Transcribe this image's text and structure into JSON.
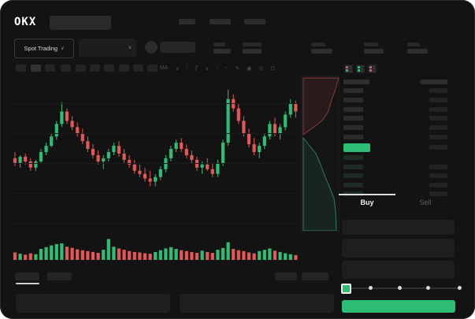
{
  "app": {
    "logo_text": "OKX"
  },
  "colors": {
    "background": "#131313",
    "green": "#2ebd74",
    "red": "#e25757",
    "panel": "#1e1e1e",
    "active_text": "#f0f0f0",
    "dim_text": "#5f5f5f"
  },
  "header": {
    "search": {
      "placeholder": ""
    },
    "nav_placeholder_count": 5,
    "mode_selector": {
      "label": "Spot Trading",
      "chevron": "∨"
    },
    "pair_dropdown": {
      "chevron": "∨"
    },
    "stats_placeholder_count": 5
  },
  "chart_toolbar": {
    "timeframe_button_count": 10,
    "active_timeframe_index": 1,
    "icons": [
      {
        "name": "indicator-ma-icon",
        "glyph": "MA"
      },
      {
        "name": "chevron-down-icon",
        "glyph": "∨"
      },
      {
        "name": "divider",
        "glyph": "|"
      },
      {
        "name": "function-icon",
        "glyph": "ƒ"
      },
      {
        "name": "chevron-down-icon",
        "glyph": "∨"
      },
      {
        "name": "divider",
        "glyph": "|"
      },
      {
        "name": "line-style-icon",
        "glyph": "~"
      },
      {
        "name": "draw-icon",
        "glyph": "✎"
      },
      {
        "name": "camera-icon",
        "glyph": "◉"
      },
      {
        "name": "settings-icon",
        "glyph": "⊙"
      },
      {
        "name": "fullscreen-icon",
        "glyph": "⊡"
      }
    ]
  },
  "chart_data": [
    {
      "type": "candlestick",
      "title": "",
      "xlabel": "",
      "ylabel": "",
      "note": "price scale normalized 0-100, no axis labels visible in screenshot",
      "ylim": [
        0,
        100
      ],
      "candles_ohlc": [
        [
          48,
          52,
          43,
          45
        ],
        [
          45,
          50,
          42,
          49
        ],
        [
          49,
          51,
          44,
          46
        ],
        [
          46,
          48,
          40,
          42
        ],
        [
          42,
          47,
          40,
          46
        ],
        [
          46,
          54,
          45,
          52
        ],
        [
          52,
          58,
          50,
          56
        ],
        [
          56,
          64,
          55,
          62
        ],
        [
          62,
          72,
          60,
          70
        ],
        [
          70,
          84,
          68,
          78
        ],
        [
          78,
          80,
          70,
          72
        ],
        [
          72,
          75,
          66,
          68
        ],
        [
          68,
          71,
          62,
          64
        ],
        [
          64,
          67,
          57,
          59
        ],
        [
          59,
          62,
          52,
          54
        ],
        [
          54,
          57,
          48,
          50
        ],
        [
          50,
          53,
          44,
          46
        ],
        [
          46,
          50,
          41,
          48
        ],
        [
          48,
          54,
          46,
          52
        ],
        [
          52,
          58,
          50,
          56
        ],
        [
          56,
          59,
          49,
          51
        ],
        [
          51,
          54,
          45,
          47
        ],
        [
          47,
          50,
          42,
          44
        ],
        [
          44,
          47,
          38,
          40
        ],
        [
          40,
          44,
          36,
          38
        ],
        [
          38,
          42,
          33,
          35
        ],
        [
          35,
          40,
          30,
          33
        ],
        [
          33,
          38,
          30,
          36
        ],
        [
          36,
          43,
          34,
          41
        ],
        [
          41,
          50,
          39,
          48
        ],
        [
          48,
          56,
          46,
          54
        ],
        [
          54,
          60,
          52,
          58
        ],
        [
          58,
          61,
          52,
          54
        ],
        [
          54,
          57,
          48,
          50
        ],
        [
          50,
          53,
          45,
          47
        ],
        [
          47,
          49,
          40,
          42
        ],
        [
          42,
          46,
          38,
          44
        ],
        [
          44,
          48,
          40,
          41
        ],
        [
          41,
          45,
          36,
          38
        ],
        [
          38,
          47,
          36,
          45
        ],
        [
          45,
          60,
          43,
          58
        ],
        [
          58,
          92,
          56,
          86
        ],
        [
          86,
          89,
          78,
          80
        ],
        [
          80,
          83,
          70,
          72
        ],
        [
          72,
          75,
          62,
          64
        ],
        [
          64,
          67,
          55,
          57
        ],
        [
          57,
          61,
          50,
          52
        ],
        [
          52,
          58,
          48,
          56
        ],
        [
          56,
          64,
          54,
          62
        ],
        [
          62,
          72,
          60,
          70
        ],
        [
          70,
          74,
          62,
          64
        ],
        [
          64,
          70,
          60,
          68
        ],
        [
          68,
          78,
          66,
          76
        ],
        [
          76,
          86,
          74,
          83
        ],
        [
          83,
          85,
          74,
          78
        ]
      ]
    },
    {
      "type": "bar",
      "title": "volume",
      "note": "bottom volume histogram, heights normalized 0-100, colored by candle direction",
      "values": [
        34,
        28,
        24,
        30,
        26,
        50,
        58,
        66,
        72,
        75,
        60,
        55,
        48,
        44,
        40,
        36,
        32,
        46,
        95,
        60,
        52,
        46,
        40,
        36,
        34,
        30,
        28,
        36,
        44,
        52,
        58,
        50,
        44,
        40,
        36,
        32,
        42,
        36,
        32,
        46,
        54,
        80,
        50,
        44,
        40,
        34,
        30,
        40,
        46,
        52,
        42,
        36,
        30,
        26,
        22
      ]
    },
    {
      "type": "area",
      "title": "depth",
      "note": "vertical market depth, asks (red) top, bids (green) bottom; points in local 47x196 coords",
      "asks_curve": [
        [
          47,
          2
        ],
        [
          43,
          16
        ],
        [
          38,
          30
        ],
        [
          33,
          46
        ],
        [
          26,
          56
        ],
        [
          16,
          64
        ],
        [
          7,
          70
        ],
        [
          2,
          74
        ]
      ],
      "bids_curve": [
        [
          2,
          78
        ],
        [
          10,
          88
        ],
        [
          18,
          98
        ],
        [
          24,
          112
        ],
        [
          30,
          128
        ],
        [
          36,
          142
        ],
        [
          41,
          155
        ],
        [
          43,
          170
        ],
        [
          44,
          196
        ]
      ]
    }
  ],
  "orderbook": {
    "view_icons": [
      "combined-book-icon",
      "bids-only-icon",
      "asks-only-icon"
    ],
    "ask_row_count": 6,
    "bid_rows": [
      {
        "amount_bar": false
      },
      {
        "amount_bar": true
      },
      {
        "amount_bar": true
      },
      {
        "amount_bar": true
      },
      {
        "amount_bar": true
      }
    ],
    "last_price_highlighted": true
  },
  "trade_panel": {
    "tabs": {
      "buy": "Buy",
      "sell": "Sell"
    },
    "active_tab": "Buy",
    "field_count": 3,
    "slider": {
      "stop_count": 5,
      "value_percent": 0
    },
    "buy_button_label": ""
  }
}
